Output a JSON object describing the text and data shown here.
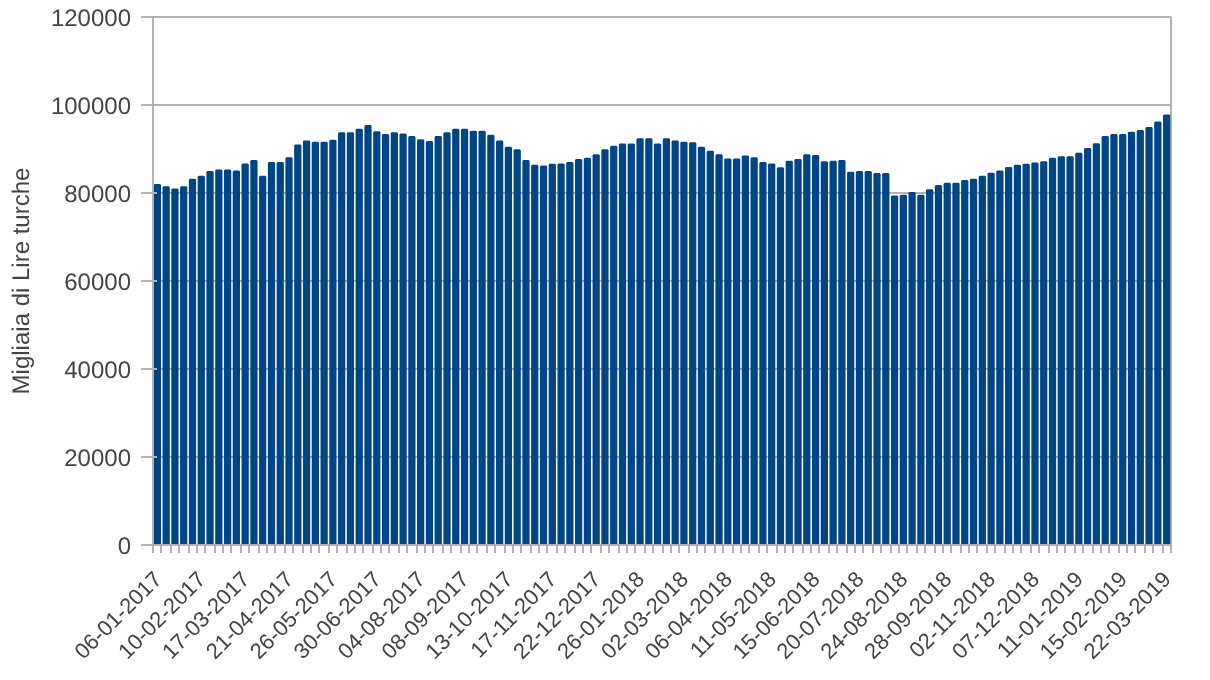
{
  "chart_data": {
    "type": "bar",
    "ylabel": "Migliaia di Lire turche",
    "categories": [
      "06-01-2017",
      null,
      null,
      null,
      null,
      "10-02-2017",
      null,
      null,
      null,
      null,
      "17-03-2017",
      null,
      null,
      null,
      null,
      "21-04-2017",
      null,
      null,
      null,
      null,
      "26-05-2017",
      null,
      null,
      null,
      null,
      "30-06-2017",
      null,
      null,
      null,
      null,
      "04-08-2017",
      null,
      null,
      null,
      null,
      "08-09-2017",
      null,
      null,
      null,
      null,
      "13-10-2017",
      null,
      null,
      null,
      null,
      "17-11-2017",
      null,
      null,
      null,
      null,
      "22-12-2017",
      null,
      null,
      null,
      null,
      "26-01-2018",
      null,
      null,
      null,
      null,
      "02-03-2018",
      null,
      null,
      null,
      null,
      "06-04-2018",
      null,
      null,
      null,
      null,
      "11-05-2018",
      null,
      null,
      null,
      null,
      "15-06-2018",
      null,
      null,
      null,
      null,
      "20-07-2018",
      null,
      null,
      null,
      null,
      "24-08-2018",
      null,
      null,
      null,
      null,
      "28-09-2018",
      null,
      null,
      null,
      null,
      "02-11-2018",
      null,
      null,
      null,
      null,
      "07-12-2018",
      null,
      null,
      null,
      null,
      "11-01-2019",
      null,
      null,
      null,
      null,
      "15-02-2019",
      null,
      null,
      null,
      null,
      "22-03-2019"
    ],
    "values": [
      81800,
      81300,
      80800,
      81300,
      83000,
      83700,
      84800,
      85100,
      85100,
      84900,
      86500,
      87300,
      83700,
      86800,
      86800,
      87900,
      90800,
      91700,
      91400,
      91400,
      91900,
      93600,
      93600,
      94400,
      95200,
      93800,
      93200,
      93600,
      93300,
      92700,
      92000,
      91600,
      92700,
      93600,
      94400,
      94400,
      93900,
      93900,
      93000,
      91700,
      90300,
      89700,
      87300,
      86200,
      86000,
      86400,
      86500,
      86800,
      87500,
      87800,
      88600,
      89700,
      90500,
      91000,
      91000,
      92200,
      92200,
      91000,
      92200,
      91700,
      91400,
      91300,
      90300,
      89400,
      88600,
      87600,
      87600,
      88300,
      87900,
      86800,
      86500,
      85600,
      87100,
      87500,
      88600,
      88400,
      87000,
      87100,
      87300,
      84600,
      84800,
      84800,
      84300,
      84300,
      79200,
      79400,
      80000,
      79400,
      80600,
      81600,
      82100,
      82100,
      82700,
      83000,
      83700,
      84400,
      84900,
      85700,
      86200,
      86400,
      86700,
      87000,
      87800,
      88100,
      88100,
      88900,
      90000,
      91100,
      92700,
      93200,
      93200,
      93700,
      94100,
      94800,
      96000,
      97600
    ],
    "color": "#004586",
    "ylim": [
      0,
      120000
    ],
    "yticks": [
      0,
      20000,
      40000,
      60000,
      80000,
      100000,
      120000
    ],
    "grid": "y"
  }
}
